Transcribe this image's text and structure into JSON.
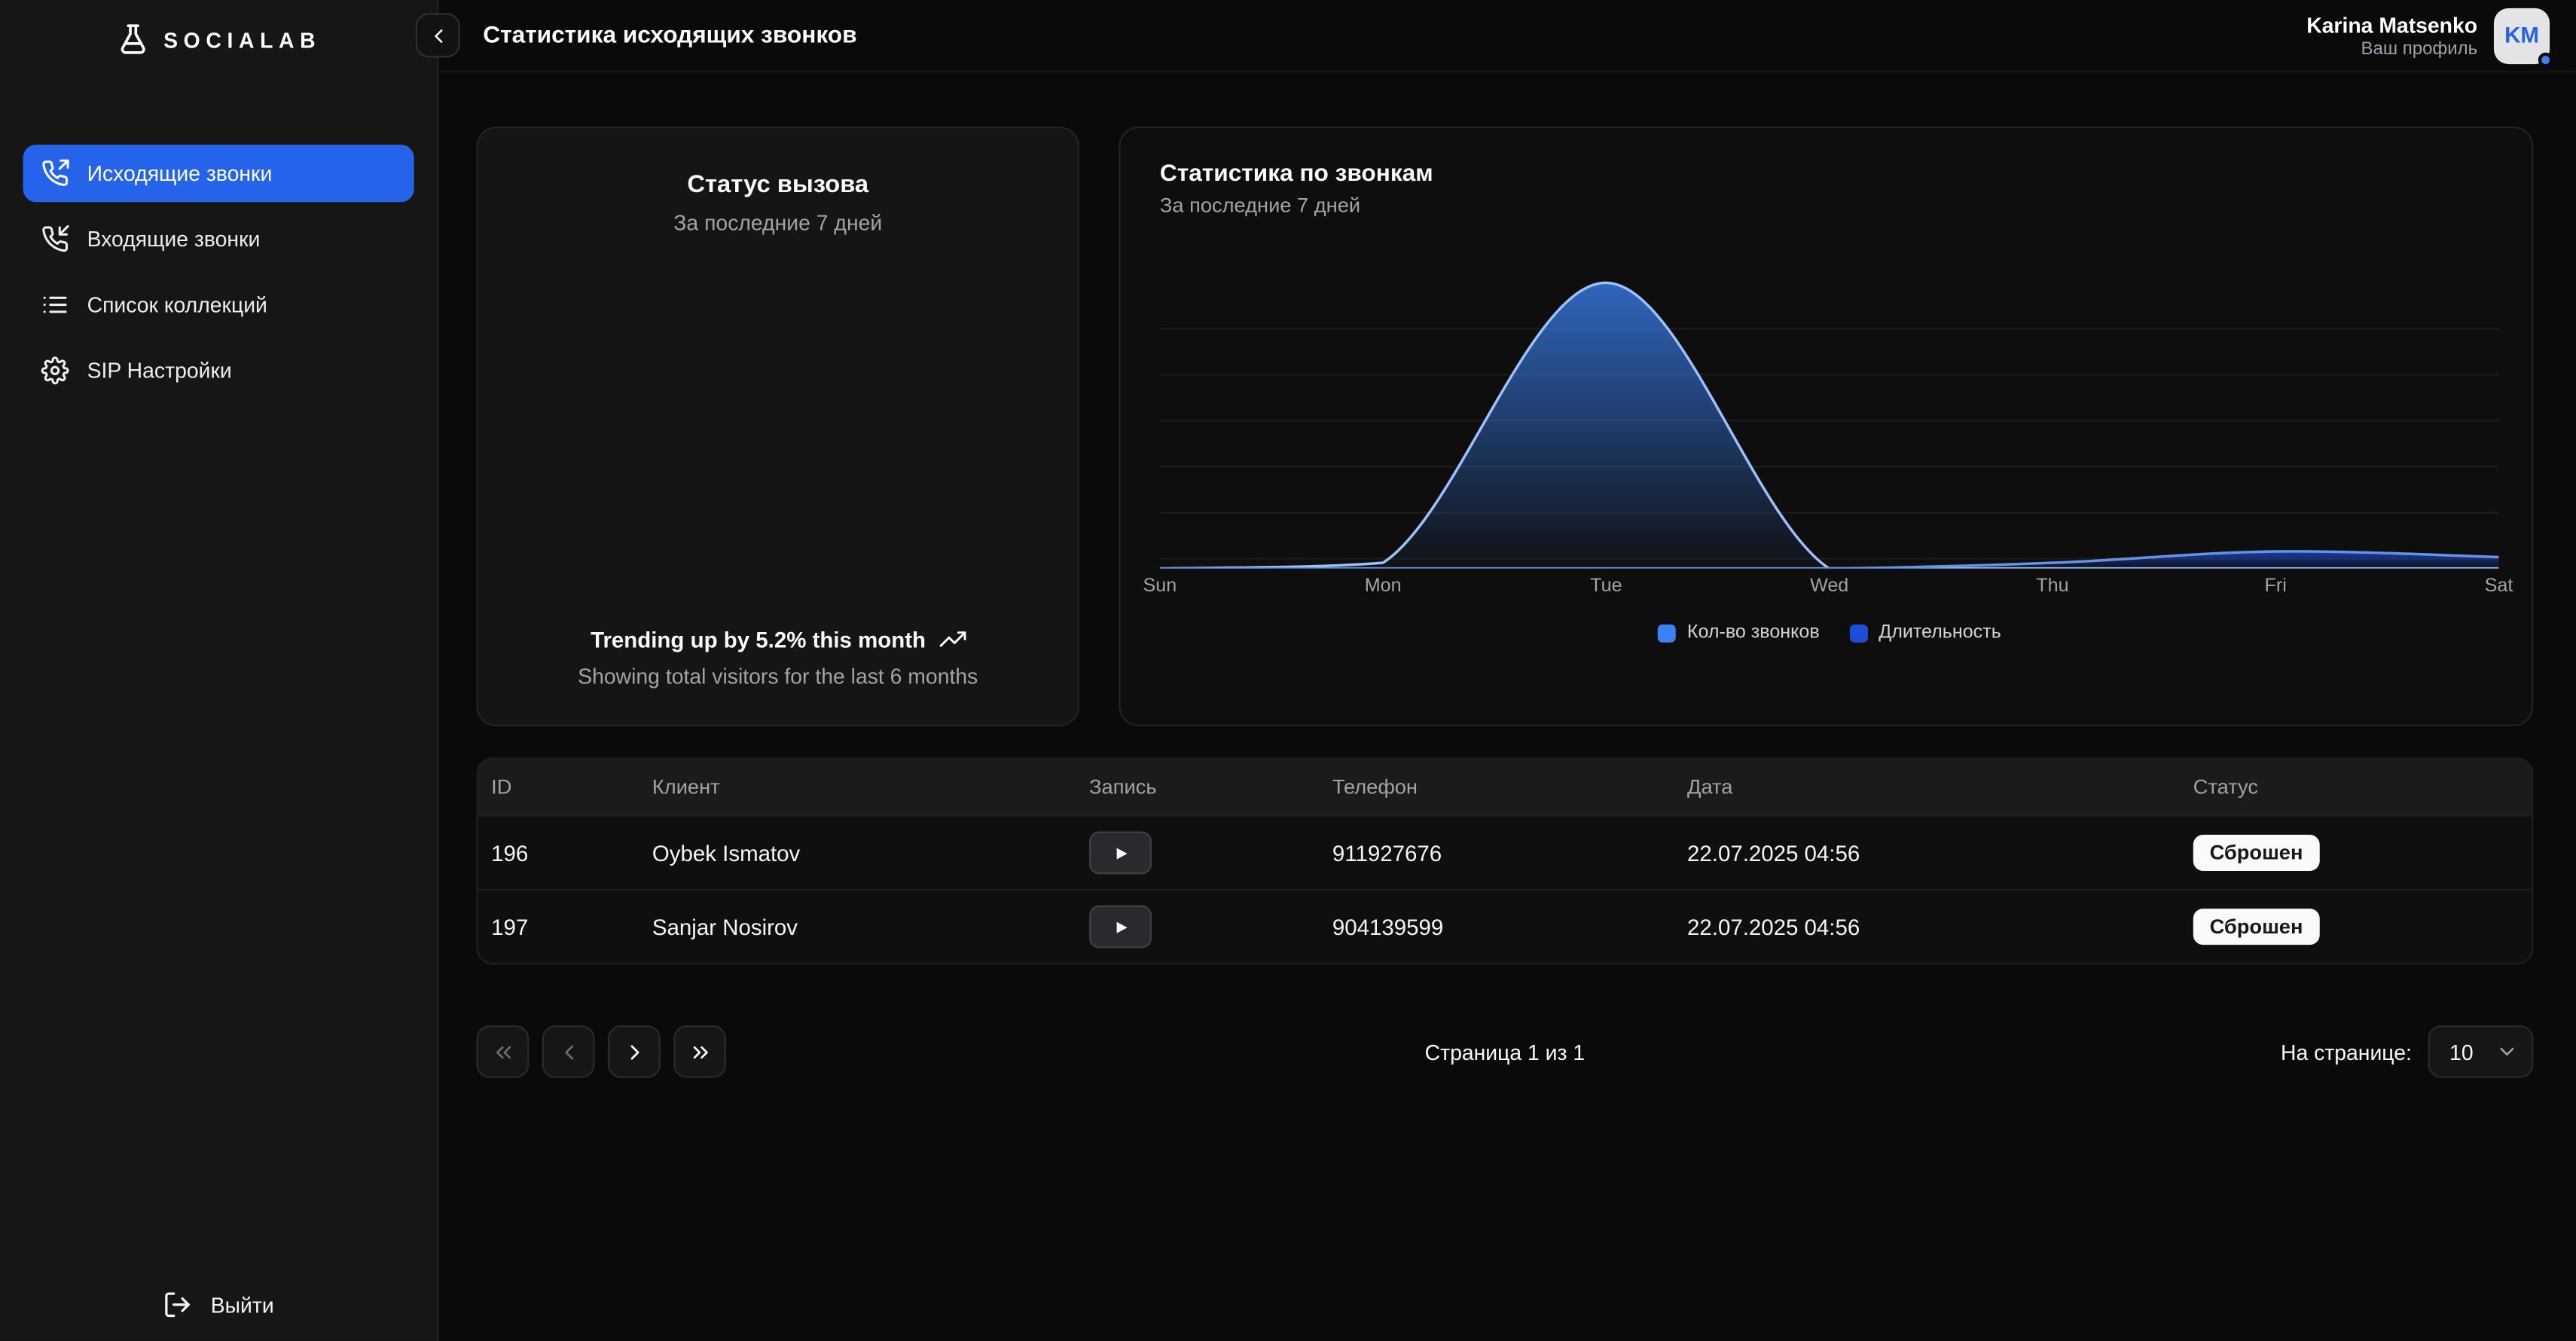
{
  "app": {
    "brand": "SOCIALAB"
  },
  "header": {
    "title": "Статистика исходящих звонков",
    "user_name": "Karina Matsenko",
    "user_subtitle": "Ваш профиль",
    "avatar_initials": "KM"
  },
  "sidebar": {
    "items": [
      {
        "label": "Исходящие звонки",
        "icon": "phone-outgoing",
        "active": true
      },
      {
        "label": "Входящие звонки",
        "icon": "phone-incoming",
        "active": false
      },
      {
        "label": "Список коллекций",
        "icon": "list",
        "active": false
      },
      {
        "label": "SIP Настройки",
        "icon": "settings",
        "active": false
      }
    ],
    "logout_label": "Выйти"
  },
  "status_card": {
    "title": "Статус вызова",
    "subtitle": "За последние 7 дней",
    "footer_main": "Trending up by 5.2% this month",
    "footer_sub": "Showing total visitors for the last 6 months"
  },
  "chart_card": {
    "title": "Статистика по звонкам",
    "subtitle": "За последние 7 дней"
  },
  "chart_data": {
    "type": "area",
    "title": "Статистика по звонкам",
    "categories": [
      "Sun",
      "Mon",
      "Tue",
      "Wed",
      "Thu",
      "Fri",
      "Sat"
    ],
    "series": [
      {
        "name": "Кол-во звонков",
        "color": "#3b82f6",
        "values": [
          0,
          2,
          100,
          0,
          0,
          0,
          0
        ]
      },
      {
        "name": "Длительность",
        "color": "#1d4ed8",
        "values": [
          0,
          0,
          0,
          0,
          2,
          6,
          4
        ]
      }
    ],
    "xlabel": "",
    "ylabel": "",
    "ylim": [
      0,
      115
    ],
    "grid": true,
    "legend_position": "bottom"
  },
  "table": {
    "columns": [
      "ID",
      "Клиент",
      "Запись",
      "Телефон",
      "Дата",
      "Статус"
    ],
    "rows": [
      {
        "id": "196",
        "client": "Oybek Ismatov",
        "phone": "911927676",
        "date": "22.07.2025 04:56",
        "status": "Сброшен"
      },
      {
        "id": "197",
        "client": "Sanjar Nosirov",
        "phone": "904139599",
        "date": "22.07.2025 04:56",
        "status": "Сброшен"
      }
    ]
  },
  "pagination": {
    "page_info": "Страница 1 из 1",
    "per_page_label": "На странице:",
    "per_page_value": "10"
  },
  "colors": {
    "accent": "#2563eb",
    "chart_line": "#9dc1fb",
    "badge_bg": "#fafafa"
  }
}
